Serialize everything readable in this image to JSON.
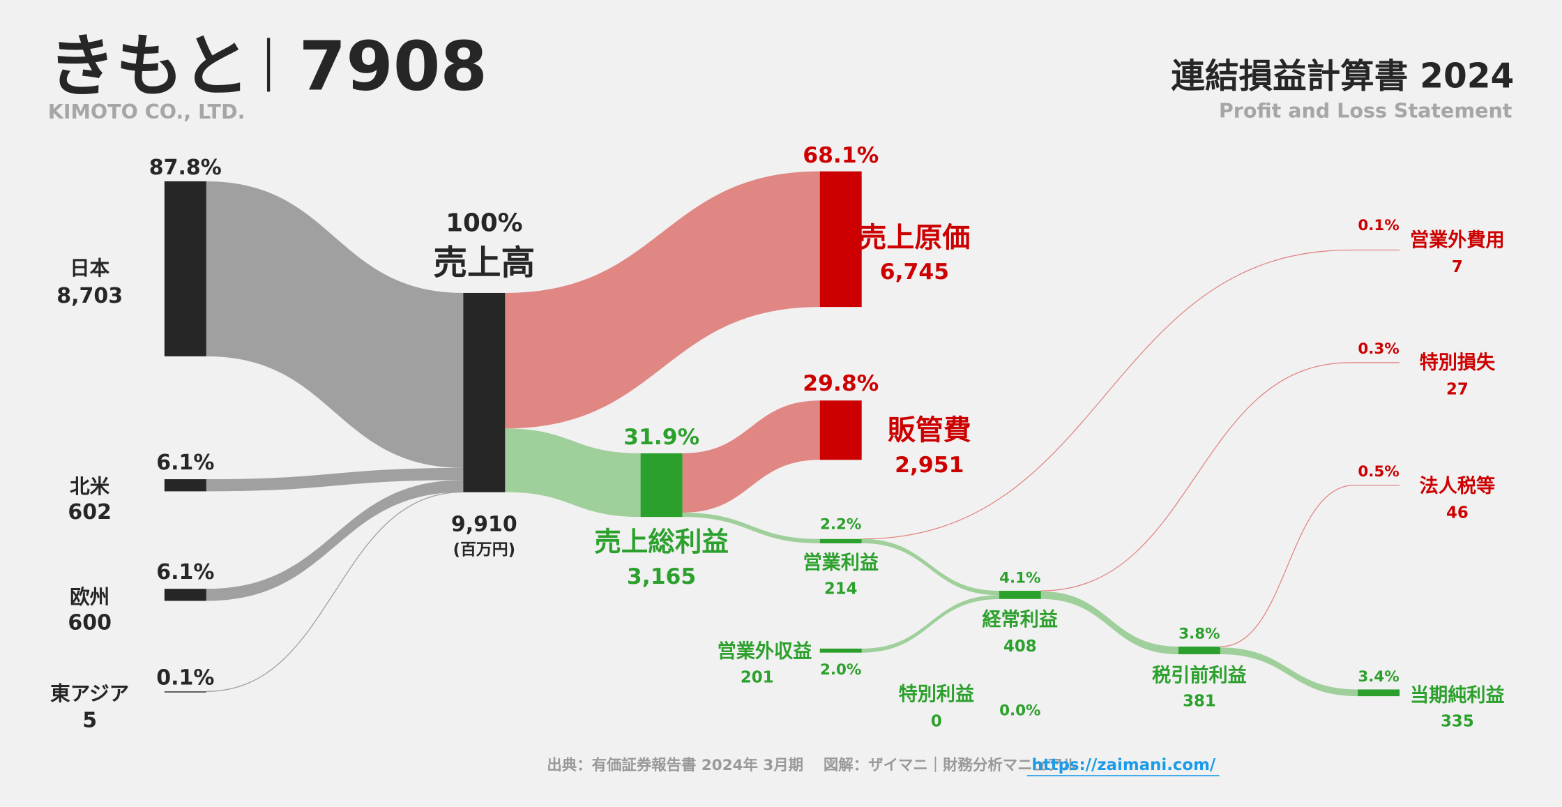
{
  "header": {
    "company": "きもと",
    "ticker": "7908",
    "company_en": "KIMOTO CO., LTD.",
    "statement_title": "連結損益計算書 2024",
    "statement_subtitle": "Profit and Loss Statement"
  },
  "chart_data": {
    "type": "sankey",
    "unit": "(百万円)",
    "colors": {
      "revenue": "#262626",
      "revenue_flow": "#a0a0a0",
      "cost": "#cc0000",
      "cost_flow": "#e08683",
      "profit": "#2ca02c",
      "profit_flow": "#9fcf9a"
    },
    "segments": [
      {
        "label": "日本",
        "value": "8,703",
        "pct": "87.8%",
        "num": 8703
      },
      {
        "label": "北米",
        "value": "602",
        "pct": "6.1%",
        "num": 602
      },
      {
        "label": "欧州",
        "value": "600",
        "pct": "6.1%",
        "num": 600
      },
      {
        "label": "東アジア",
        "value": "5",
        "pct": "0.1%",
        "num": 5
      }
    ],
    "revenue": {
      "label": "売上高",
      "value": "9,910",
      "pct": "100%",
      "num": 9910
    },
    "cogs": {
      "label": "売上原価",
      "value": "6,745",
      "pct": "68.1%",
      "num": 6745
    },
    "gross_profit": {
      "label": "売上総利益",
      "value": "3,165",
      "pct": "31.9%",
      "num": 3165
    },
    "sga": {
      "label": "販管費",
      "value": "2,951",
      "pct": "29.8%",
      "num": 2951
    },
    "operating_profit": {
      "label": "営業利益",
      "value": "214",
      "pct": "2.2%",
      "num": 214
    },
    "non_operating_income": {
      "label": "営業外収益",
      "value": "201",
      "pct": "2.0%",
      "num": 201
    },
    "non_operating_expense": {
      "label": "営業外費用",
      "value": "7",
      "pct": "0.1%",
      "num": 7
    },
    "ordinary_profit": {
      "label": "経常利益",
      "value": "408",
      "pct": "4.1%",
      "num": 408
    },
    "extraordinary_income": {
      "label": "特別利益",
      "value": "0",
      "pct": "0.0%",
      "num": 0
    },
    "extraordinary_loss": {
      "label": "特別損失",
      "value": "27",
      "pct": "0.3%",
      "num": 27
    },
    "pretax_profit": {
      "label": "税引前利益",
      "value": "381",
      "pct": "3.8%",
      "num": 381
    },
    "income_tax": {
      "label": "法人税等",
      "value": "46",
      "pct": "0.5%",
      "num": 46
    },
    "net_profit": {
      "label": "当期純利益",
      "value": "335",
      "pct": "3.4%",
      "num": 335
    }
  },
  "footer": {
    "source": "出典：有価証券報告書 2024年 3月期　 図解：ザイマニ｜財務分析マニュアル",
    "link": "https://zaimani.com/"
  }
}
